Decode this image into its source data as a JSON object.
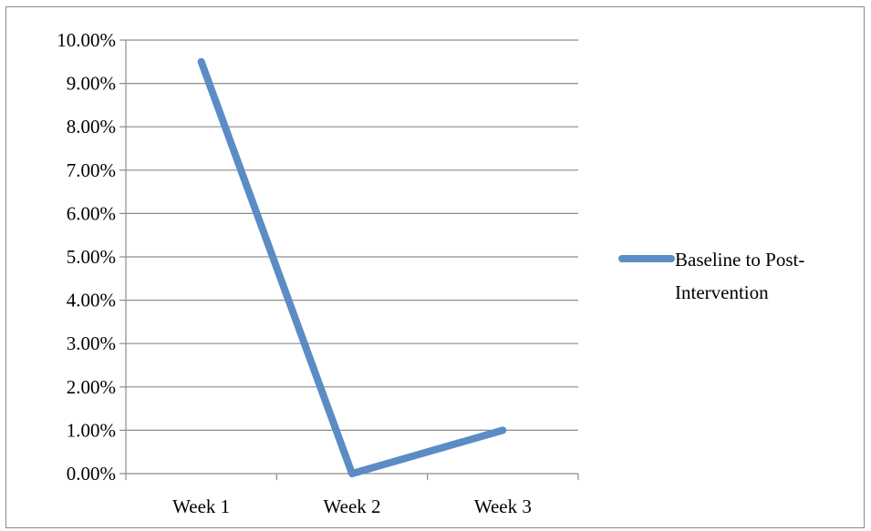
{
  "chart_data": {
    "type": "line",
    "categories": [
      "Week 1",
      "Week 2",
      "Week 3"
    ],
    "series": [
      {
        "name": "Baseline to Post-Intervention",
        "name_lines": [
          "Baseline to Post-",
          "Intervention"
        ],
        "values": [
          9.5,
          0.0,
          1.0
        ],
        "color": "#5b8cc5"
      }
    ],
    "ylim": [
      0,
      10
    ],
    "y_ticks": [
      0,
      1,
      2,
      3,
      4,
      5,
      6,
      7,
      8,
      9,
      10
    ],
    "y_tick_labels": [
      "0.00%",
      "1.00%",
      "2.00%",
      "3.00%",
      "4.00%",
      "5.00%",
      "6.00%",
      "7.00%",
      "8.00%",
      "9.00%",
      "10.00%"
    ],
    "title": "",
    "xlabel": "",
    "ylabel": "",
    "grid": true,
    "legend_position": "right",
    "colors": {
      "grid": "#8c8c8c",
      "axis": "#8c8c8c"
    }
  }
}
